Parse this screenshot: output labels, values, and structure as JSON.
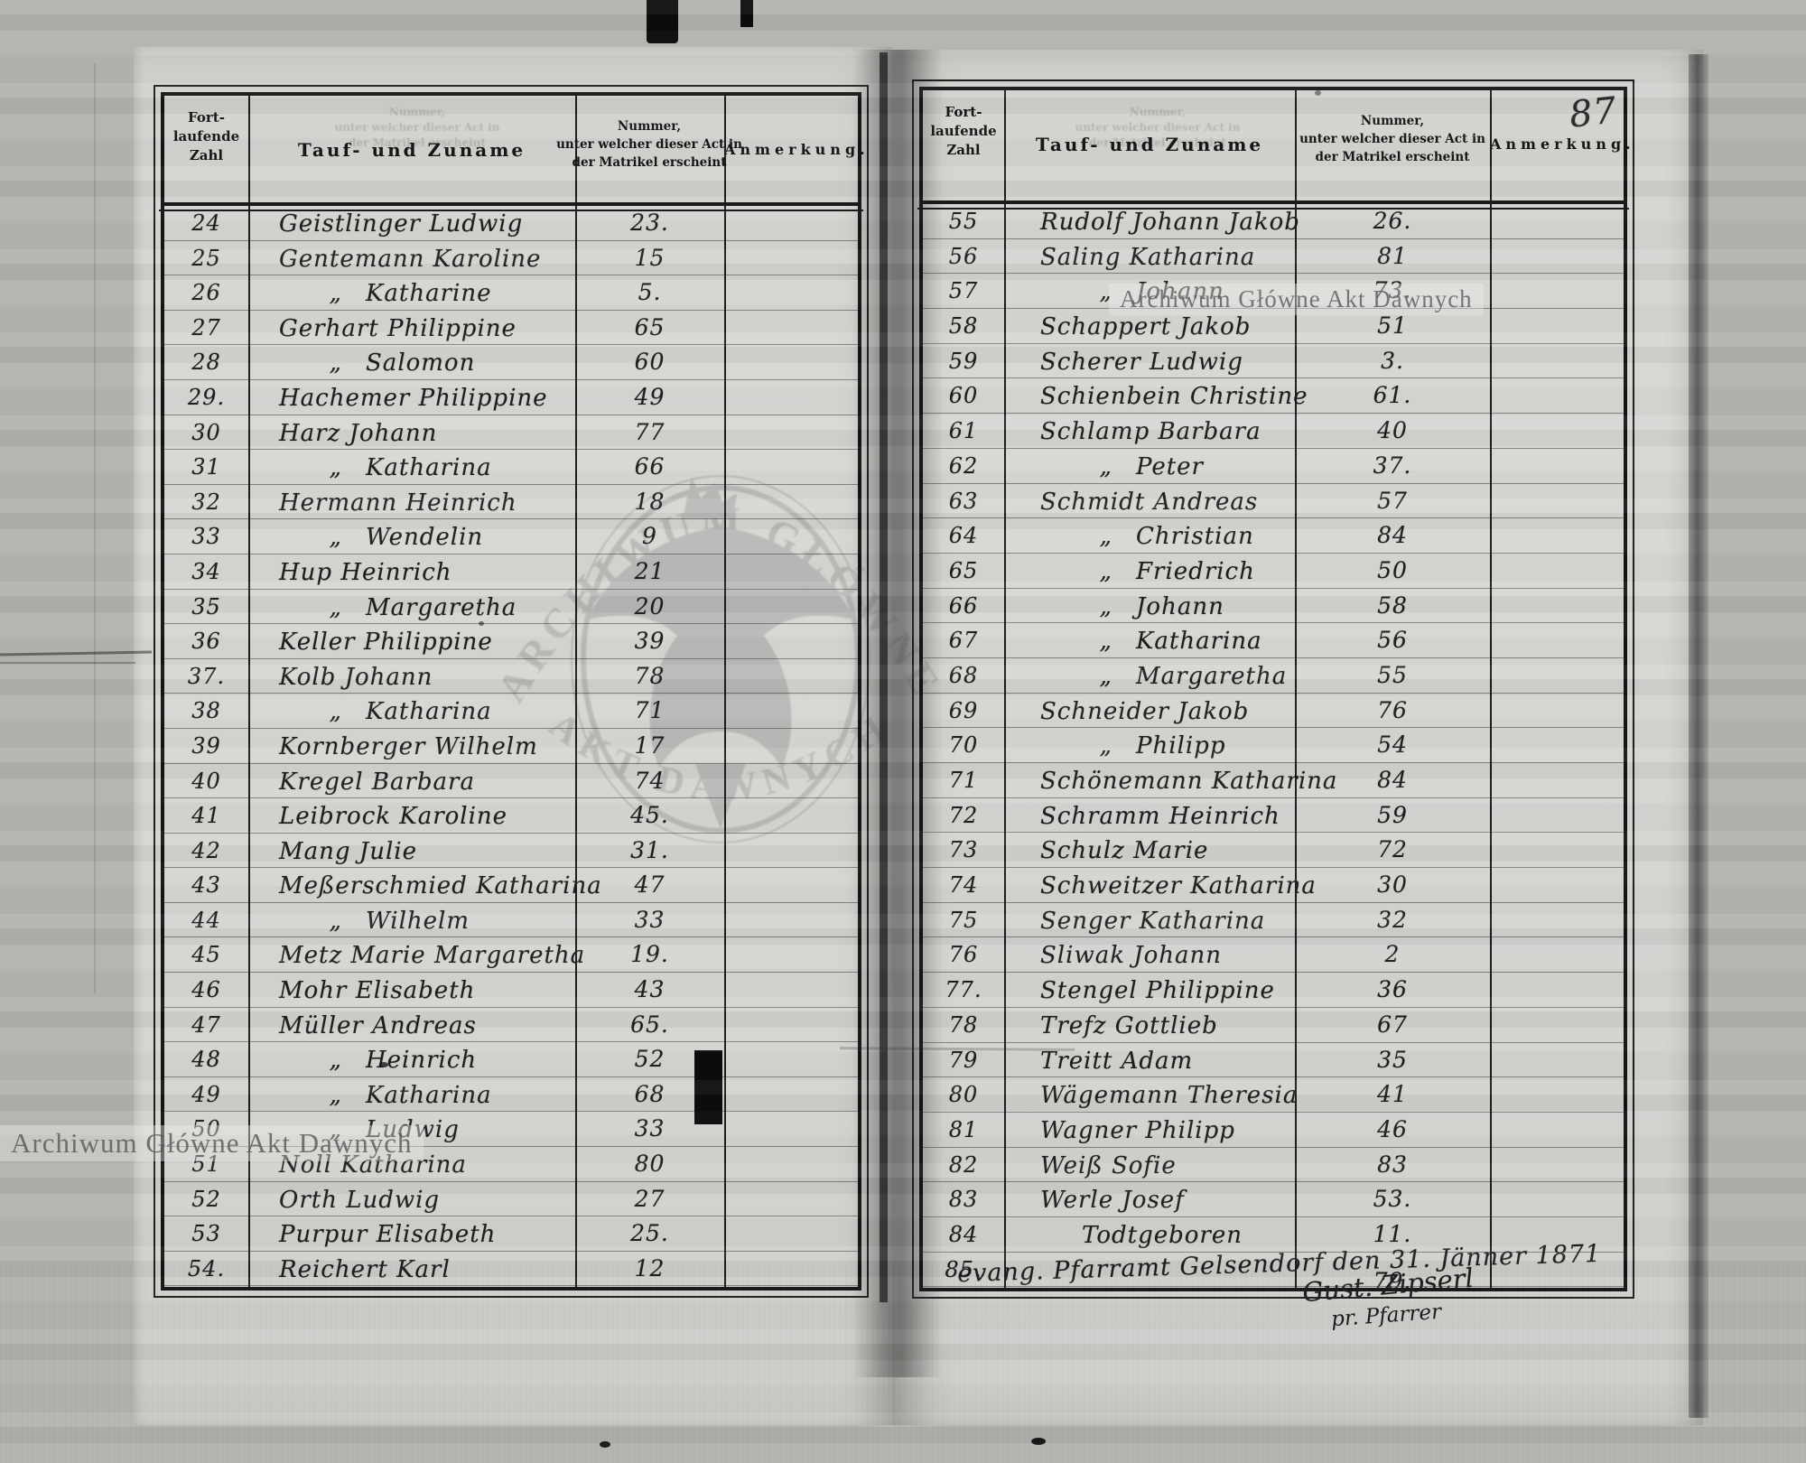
{
  "page_number": "87",
  "ditto_mark": "„",
  "colors": {
    "paper": "#d6d5d2",
    "background": "#b4b3b0",
    "ink": "#1e1e1e",
    "watermark": "#7f7f7f"
  },
  "header": {
    "col1_lines": [
      "Fort-",
      "laufende",
      "Zahl"
    ],
    "col2": "Tauf- und Zuname",
    "col3_lines": [
      "Nummer,",
      "unter welcher dieser Act in",
      "der Matrikel erscheint"
    ],
    "col4": "Anmerkung."
  },
  "watermarks": {
    "stamp_text_right": "Archiwum Główne Akt Dawnych",
    "stamp_text_left": "Archiwum Główne Akt Dawnych",
    "emblem_arc_top": "· ARCHIWUM GŁÓWNE ·",
    "emblem_arc_bottom": "AKT DAWNYCH"
  },
  "left_page": {
    "rows": [
      {
        "n": "24",
        "name": "Geistlinger Ludwig",
        "num": "23."
      },
      {
        "n": "25",
        "name": "Gentemann Karoline",
        "num": "15"
      },
      {
        "n": "26",
        "ditto": true,
        "name": "Katharine",
        "num": "5."
      },
      {
        "n": "27",
        "name": "Gerhart Philippine",
        "num": "65"
      },
      {
        "n": "28",
        "ditto": true,
        "name": "Salomon",
        "num": "60"
      },
      {
        "n": "29.",
        "name": "Hachemer Philippine",
        "num": "49"
      },
      {
        "n": "30",
        "name": "Harz Johann",
        "num": "77"
      },
      {
        "n": "31",
        "ditto": true,
        "name": "Katharina",
        "num": "66"
      },
      {
        "n": "32",
        "name": "Hermann Heinrich",
        "num": "18"
      },
      {
        "n": "33",
        "ditto": true,
        "name": "Wendelin",
        "num": "9"
      },
      {
        "n": "34",
        "name": "Hup Heinrich",
        "num": "21"
      },
      {
        "n": "35",
        "ditto": true,
        "name": "Margaretha",
        "num": "20"
      },
      {
        "n": "36",
        "name": "Keller Philippine",
        "num": "39"
      },
      {
        "n": "37.",
        "name": "Kolb Johann",
        "num": "78"
      },
      {
        "n": "38",
        "ditto": true,
        "name": "Katharina",
        "num": "71"
      },
      {
        "n": "39",
        "name": "Kornberger Wilhelm",
        "num": "17"
      },
      {
        "n": "40",
        "name": "Kregel Barbara",
        "num": "74"
      },
      {
        "n": "41",
        "name": "Leibrock Karoline",
        "num": "45."
      },
      {
        "n": "42",
        "name": "Mang Julie",
        "num": "31."
      },
      {
        "n": "43",
        "name": "Meßerschmied Katharina",
        "num": "47"
      },
      {
        "n": "44",
        "ditto": true,
        "name": "Wilhelm",
        "num": "33"
      },
      {
        "n": "45",
        "name": "Metz Marie Margaretha",
        "num": "19."
      },
      {
        "n": "46",
        "name": "Mohr Elisabeth",
        "num": "43"
      },
      {
        "n": "47",
        "name": "Müller Andreas",
        "num": "65."
      },
      {
        "n": "48",
        "ditto": true,
        "name": "Heinrich",
        "num": "52"
      },
      {
        "n": "49",
        "ditto": true,
        "name": "Katharina",
        "num": "68"
      },
      {
        "n": "50",
        "ditto": true,
        "name": "Ludwig",
        "num": "33"
      },
      {
        "n": "51",
        "name": "Noll Katharina",
        "num": "80"
      },
      {
        "n": "52",
        "name": "Orth Ludwig",
        "num": "27"
      },
      {
        "n": "53",
        "name": "Purpur Elisabeth",
        "num": "25."
      },
      {
        "n": "54.",
        "name": "Reichert Karl",
        "num": "12"
      }
    ]
  },
  "right_page": {
    "rows": [
      {
        "n": "55",
        "name": "Rudolf Johann Jakob",
        "num": "26."
      },
      {
        "n": "56",
        "name": "Saling Katharina",
        "num": "81"
      },
      {
        "n": "57",
        "ditto": true,
        "name": "Johann",
        "num": "73."
      },
      {
        "n": "58",
        "name": "Schappert Jakob",
        "num": "51"
      },
      {
        "n": "59",
        "name": "Scherer Ludwig",
        "num": "3."
      },
      {
        "n": "60",
        "name": "Schienbein Christine",
        "num": "61."
      },
      {
        "n": "61",
        "name": "Schlamp Barbara",
        "num": "40"
      },
      {
        "n": "62",
        "ditto": true,
        "name": "Peter",
        "num": "37."
      },
      {
        "n": "63",
        "name": "Schmidt Andreas",
        "num": "57"
      },
      {
        "n": "64",
        "ditto": true,
        "name": "Christian",
        "num": "84"
      },
      {
        "n": "65",
        "ditto": true,
        "name": "Friedrich",
        "num": "50"
      },
      {
        "n": "66",
        "ditto": true,
        "name": "Johann",
        "num": "58"
      },
      {
        "n": "67",
        "ditto": true,
        "name": "Katharina",
        "num": "56"
      },
      {
        "n": "68",
        "ditto": true,
        "name": "Margaretha",
        "num": "55"
      },
      {
        "n": "69",
        "name": "Schneider Jakob",
        "num": "76"
      },
      {
        "n": "70",
        "ditto": true,
        "name": "Philipp",
        "num": "54"
      },
      {
        "n": "71",
        "name": "Schönemann Katharina",
        "num": "84"
      },
      {
        "n": "72",
        "name": "Schramm Heinrich",
        "num": "59"
      },
      {
        "n": "73",
        "name": "Schulz Marie",
        "num": "72"
      },
      {
        "n": "74",
        "name": "Schweitzer Katharina",
        "num": "30"
      },
      {
        "n": "75",
        "name": "Senger Katharina",
        "num": "32"
      },
      {
        "n": "76",
        "name": "Sliwak Johann",
        "num": "2"
      },
      {
        "n": "77.",
        "name": "Stengel Philippine",
        "num": "36"
      },
      {
        "n": "78",
        "name": "Trefz Gottlieb",
        "num": "67"
      },
      {
        "n": "79",
        "name": "Treitt Adam",
        "num": "35"
      },
      {
        "n": "80",
        "name": "Wägemann Theresia",
        "num": "41"
      },
      {
        "n": "81",
        "name": "Wagner Philipp",
        "num": "46"
      },
      {
        "n": "82",
        "name": "Weiß Sofie",
        "num": "83"
      },
      {
        "n": "83",
        "name": "Werle Josef",
        "num": "53."
      },
      {
        "n": "84",
        "indent": true,
        "name": "Todtgeboren",
        "num": "11."
      },
      {
        "n": "85.",
        "name": "",
        "num": "79.",
        "low": true
      }
    ],
    "footer": {
      "text": "evang. Pfarramt Gelsendorf den 31. Jänner 1871",
      "signature": "Gust. Zipserl",
      "signature_title": "pr. Pfarrer"
    }
  }
}
